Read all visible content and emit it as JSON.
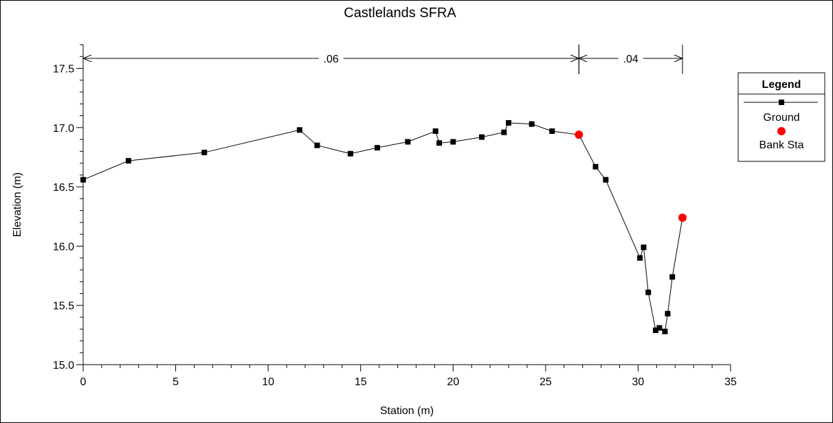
{
  "chart_data": {
    "type": "line",
    "title": "Castlelands SFRA",
    "xlabel": "Station (m)",
    "ylabel": "Elevation (m)",
    "xlim": [
      0,
      35
    ],
    "ylim": [
      15.0,
      17.7
    ],
    "x_ticks": [
      0,
      5,
      10,
      15,
      20,
      25,
      30,
      35
    ],
    "x_tick_labels": [
      "0",
      "5",
      "10",
      "15",
      "20",
      "25",
      "30",
      "35"
    ],
    "y_ticks": [
      15.0,
      15.5,
      16.0,
      16.5,
      17.0,
      17.5
    ],
    "y_tick_labels": [
      "15.0",
      "15.5",
      "16.0",
      "16.5",
      "17.0",
      "17.5"
    ],
    "grid": false,
    "legend": {
      "title": "Legend",
      "placement": "right",
      "entries": [
        "Ground",
        "Bank Sta"
      ]
    },
    "roughness_zones": [
      {
        "label": ".06",
        "x_start": 0,
        "x_end": 26.8
      },
      {
        "label": ".04",
        "x_start": 26.8,
        "x_end": 32.4
      }
    ],
    "series": [
      {
        "name": "Ground",
        "color": "#000000",
        "marker": "square",
        "x": [
          0,
          2.45,
          6.55,
          11.7,
          12.65,
          14.45,
          15.9,
          17.55,
          19.05,
          19.25,
          20.0,
          21.55,
          22.75,
          23.0,
          24.25,
          25.35,
          26.8,
          27.7,
          28.25,
          30.1,
          30.3,
          30.55,
          30.95,
          31.15,
          31.45,
          31.6,
          31.85,
          32.4
        ],
        "y": [
          16.56,
          16.72,
          16.79,
          16.98,
          16.85,
          16.78,
          16.83,
          16.88,
          16.97,
          16.87,
          16.88,
          16.92,
          16.96,
          17.04,
          17.03,
          16.97,
          16.94,
          16.67,
          16.56,
          15.9,
          15.99,
          15.61,
          15.29,
          15.31,
          15.28,
          15.43,
          15.74,
          16.24
        ]
      },
      {
        "name": "Bank Sta",
        "color": "#ff0000",
        "marker": "circle",
        "x": [
          26.8,
          32.4
        ],
        "y": [
          16.94,
          16.24
        ]
      }
    ]
  }
}
